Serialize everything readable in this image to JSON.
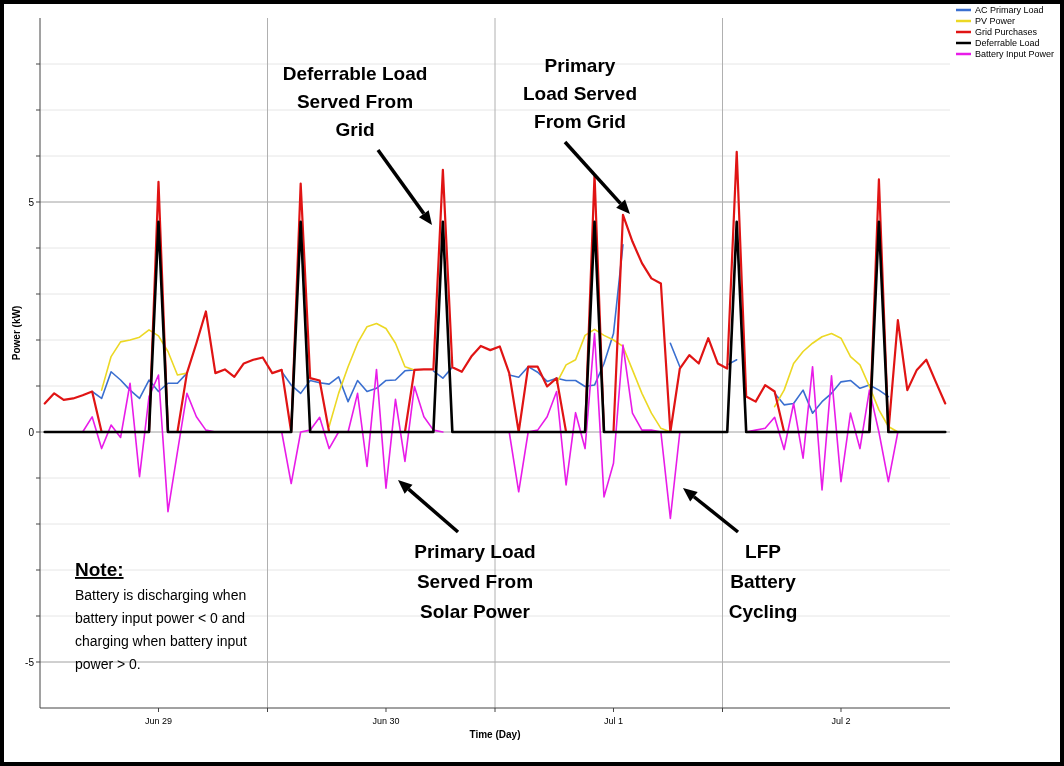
{
  "chart_data": {
    "type": "line",
    "xlabel": "Time (Day)",
    "ylabel": "Power (kW)",
    "categories": [
      null,
      null,
      null,
      null,
      null,
      null,
      null,
      null,
      null,
      null,
      null,
      null,
      "Jun 29",
      null,
      null,
      null,
      null,
      null,
      null,
      null,
      null,
      null,
      null,
      null,
      null,
      null,
      null,
      null,
      null,
      null,
      null,
      null,
      null,
      null,
      null,
      null,
      "Jun 30",
      null,
      null,
      null,
      null,
      null,
      null,
      null,
      null,
      null,
      null,
      null,
      null,
      null,
      null,
      null,
      null,
      null,
      null,
      null,
      null,
      null,
      null,
      null,
      "Jul 1",
      null,
      null,
      null,
      null,
      null,
      null,
      null,
      null,
      null,
      null,
      null,
      null,
      null,
      null,
      null,
      null,
      null,
      null,
      null,
      null,
      null,
      null,
      null,
      "Jul 2",
      null,
      null,
      null,
      null,
      null,
      null,
      null,
      null,
      null,
      null,
      null
    ],
    "ylim": [
      -6,
      9
    ],
    "yticks": [
      -5,
      {
        "value": -4,
        "label": null
      },
      {
        "value": -3,
        "label": null
      },
      {
        "value": -2,
        "label": null
      },
      {
        "value": -1,
        "label": null
      },
      0,
      {
        "value": 1,
        "label": null
      },
      {
        "value": 2,
        "label": null
      },
      {
        "value": 3,
        "label": null
      },
      {
        "value": 4,
        "label": null
      },
      5,
      {
        "value": 6,
        "label": null
      },
      {
        "value": 7,
        "label": null
      },
      {
        "value": 8,
        "label": null
      }
    ],
    "grid": true,
    "legend": "top right",
    "series": [
      {
        "name": "AC Primary Load",
        "color": "#3a6fd0",
        "values": [
          null,
          null,
          null,
          null,
          null,
          0.88,
          0.73,
          1.31,
          1.13,
          0.91,
          0.73,
          1.13,
          0.88,
          1.06,
          1.06,
          1.28,
          null,
          null,
          null,
          null,
          null,
          null,
          null,
          null,
          null,
          1.31,
          1.02,
          0.84,
          1.12,
          1.07,
          1.04,
          1.2,
          0.66,
          1.12,
          0.88,
          0.95,
          1.12,
          1.13,
          1.33,
          1.35,
          null,
          1.33,
          1.17,
          1.41,
          null,
          null,
          null,
          null,
          null,
          1.24,
          1.19,
          1.42,
          1.3,
          1.1,
          1.17,
          1.12,
          1.12,
          0.99,
          1.02,
          1.49,
          2.14,
          4.07,
          null,
          null,
          null,
          null,
          1.93,
          1.42,
          null,
          null,
          null,
          null,
          1.46,
          1.57,
          null,
          null,
          null,
          0.84,
          0.59,
          0.62,
          0.91,
          0.41,
          0.66,
          0.84,
          1.09,
          1.12,
          0.95,
          1.02,
          0.91,
          0.77,
          null,
          null,
          null,
          null,
          null,
          null
        ]
      },
      {
        "name": "PV Power",
        "color": "#ecd824",
        "values": [
          null,
          null,
          null,
          null,
          null,
          null,
          0.91,
          1.64,
          1.96,
          2.0,
          2.06,
          2.22,
          2.09,
          1.75,
          1.24,
          1.28,
          null,
          null,
          null,
          null,
          null,
          null,
          null,
          null,
          null,
          null,
          null,
          null,
          null,
          null,
          0.12,
          0.84,
          1.42,
          1.93,
          2.29,
          2.36,
          2.25,
          1.93,
          1.42,
          1.35,
          null,
          null,
          null,
          null,
          null,
          null,
          null,
          null,
          null,
          null,
          null,
          null,
          null,
          null,
          1.06,
          1.46,
          1.57,
          2.1,
          2.23,
          2.1,
          2.0,
          1.86,
          1.35,
          0.84,
          0.41,
          0.08,
          0,
          null,
          null,
          null,
          null,
          null,
          null,
          null,
          null,
          null,
          null,
          0.55,
          0.91,
          1.49,
          1.75,
          1.93,
          2.07,
          2.14,
          2.04,
          1.64,
          1.46,
          0.99,
          0.48,
          0.12,
          0,
          null,
          null,
          null,
          null,
          null
        ]
      },
      {
        "name": "Grid Purchases",
        "color": "#e01414",
        "values": [
          0.62,
          0.84,
          0.7,
          0.73,
          0.8,
          0.88,
          0,
          null,
          null,
          null,
          null,
          0,
          5.44,
          0,
          0,
          1.28,
          1.93,
          2.62,
          1.28,
          1.36,
          1.2,
          1.49,
          1.57,
          1.62,
          1.28,
          1.35,
          0,
          5.4,
          1.17,
          1.12,
          0,
          null,
          null,
          null,
          null,
          null,
          null,
          null,
          0,
          1.35,
          1.36,
          1.36,
          5.7,
          1.41,
          1.31,
          1.64,
          1.87,
          1.78,
          1.86,
          1.28,
          0,
          1.42,
          1.42,
          0.99,
          1.17,
          0,
          null,
          0,
          5.59,
          0,
          0,
          4.72,
          4.14,
          3.67,
          3.34,
          3.23,
          0,
          1.38,
          1.67,
          1.49,
          2.04,
          1.49,
          1.38,
          6.09,
          0.77,
          0.66,
          1.02,
          0.88,
          0,
          null,
          null,
          null,
          null,
          null,
          null,
          null,
          null,
          0,
          5.49,
          0,
          2.43,
          0.91,
          1.35,
          1.57,
          1.09,
          0.62
        ]
      },
      {
        "name": "Deferrable Load",
        "color": "#000000",
        "values": [
          0,
          0,
          0,
          0,
          0,
          0,
          0,
          0,
          0,
          0,
          0,
          0,
          4.57,
          0,
          0,
          0,
          0,
          0,
          0,
          0,
          0,
          0,
          0,
          0,
          0,
          0,
          0,
          4.57,
          0,
          0,
          0,
          0,
          0,
          0,
          0,
          0,
          0,
          0,
          0,
          0,
          0,
          0,
          4.57,
          0,
          0,
          0,
          0,
          0,
          0,
          0,
          0,
          0,
          0,
          0,
          0,
          0,
          0,
          0,
          4.57,
          0,
          0,
          0,
          0,
          0,
          0,
          0,
          0,
          0,
          0,
          0,
          0,
          0,
          0,
          4.57,
          0,
          0,
          0,
          0,
          0,
          0,
          0,
          0,
          0,
          0,
          0,
          0,
          0,
          0,
          4.57,
          0,
          0,
          0,
          0,
          0,
          0,
          0
        ]
      },
      {
        "name": "Battery Input Power",
        "color": "#e81ce8",
        "values": [
          null,
          null,
          null,
          null,
          0,
          0.33,
          -0.36,
          0.15,
          -0.12,
          1.06,
          -0.97,
          0.77,
          1.24,
          -1.73,
          -0.43,
          0.84,
          0.33,
          0.04,
          0,
          null,
          null,
          null,
          null,
          null,
          null,
          0,
          -1.12,
          0,
          0.04,
          0.32,
          -0.36,
          0,
          0,
          0.84,
          -0.75,
          1.36,
          -1.22,
          0.71,
          -0.64,
          0.99,
          0.33,
          0.04,
          0,
          null,
          null,
          null,
          null,
          null,
          null,
          0,
          -1.3,
          0,
          0.04,
          0.33,
          0.88,
          -1.15,
          0.42,
          -0.36,
          2.14,
          -1.41,
          -0.68,
          1.89,
          0.41,
          0.04,
          0.04,
          0,
          -1.88,
          0,
          null,
          null,
          null,
          null,
          null,
          null,
          0,
          0.04,
          0.08,
          0.32,
          -0.38,
          0.62,
          -0.57,
          1.42,
          -1.26,
          1.22,
          -1.08,
          0.41,
          -0.36,
          0.91,
          0,
          -1.08,
          0,
          null,
          null,
          null,
          null,
          null
        ]
      }
    ],
    "annotations": [
      "Deferrable Load Served From Grid",
      "Primary Load Served From Grid",
      "Primary Load Served From Solar Power",
      "LFP Battery Cycling",
      "Note:",
      "Battery is discharging when battery input power < 0 and charging when battery input power > 0."
    ]
  }
}
